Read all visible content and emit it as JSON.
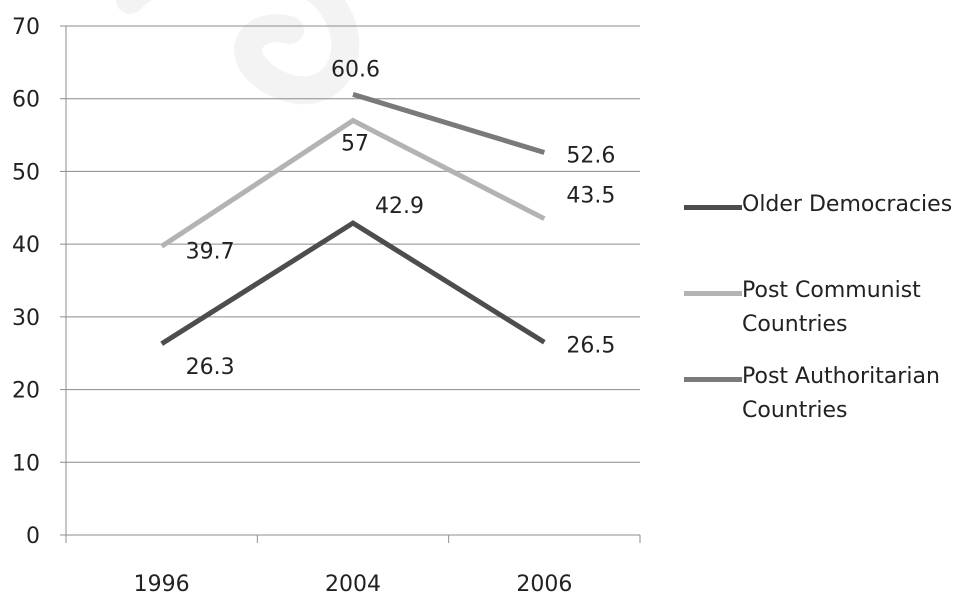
{
  "chart_data": {
    "type": "line",
    "title": "",
    "xlabel": "",
    "ylabel": "",
    "categories": [
      "1996",
      "2004",
      "2006"
    ],
    "ylim": [
      0,
      70
    ],
    "yticks": [
      0,
      10,
      20,
      30,
      40,
      50,
      60,
      70
    ],
    "grid": true,
    "legend_position": "right",
    "series": [
      {
        "name": "Older Democracies",
        "values": [
          26.3,
          42.9,
          26.5
        ],
        "color": "#4d4d4d",
        "labels": [
          "26.3",
          "42.9",
          "26.5"
        ]
      },
      {
        "name": "Post Communist Countries",
        "values": [
          39.7,
          57,
          43.5
        ],
        "color": "#b3b3b3",
        "labels": [
          "39.7",
          "57",
          "43.5"
        ]
      },
      {
        "name": "Post Authoritarian Countries",
        "values": [
          null,
          60.6,
          52.6
        ],
        "color": "#7a7a7a",
        "labels": [
          "",
          "60.6",
          "52.6"
        ]
      }
    ]
  },
  "legend": {
    "items": [
      {
        "label": "Older Democracies",
        "color": "#4d4d4d"
      },
      {
        "label": "Post Communist Countries",
        "color": "#b3b3b3"
      },
      {
        "label": "Post Authoritarian Countries",
        "color": "#7a7a7a"
      }
    ]
  }
}
